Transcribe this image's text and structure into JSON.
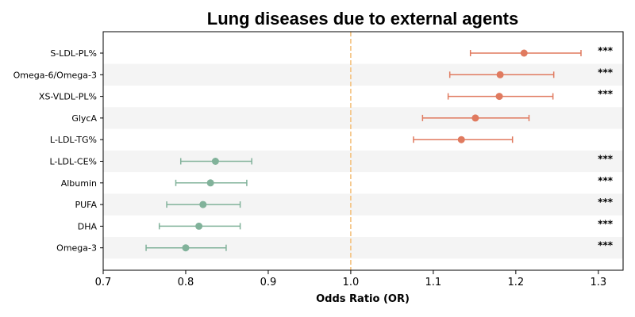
{
  "chart_data": {
    "type": "forest",
    "title": "Lung diseases due to external agents",
    "xlabel": "Odds Ratio (OR)",
    "xlim": [
      0.7,
      1.33
    ],
    "xticks": [
      "0.7",
      "0.8",
      "0.9",
      "1.0",
      "1.1",
      "1.2",
      "1.3"
    ],
    "reference_line": 1.0,
    "colors": {
      "positive": "#e07a5f",
      "negative": "#81b29a",
      "reference": "#f4c27f",
      "band": "#f4f4f4"
    },
    "rows": [
      {
        "label": "S-LDL-PL%",
        "or": 1.21,
        "lo": 1.145,
        "hi": 1.279,
        "sig": "***"
      },
      {
        "label": "Omega-6/Omega-3",
        "or": 1.181,
        "lo": 1.12,
        "hi": 1.246,
        "sig": "***"
      },
      {
        "label": "XS-VLDL-PL%",
        "or": 1.18,
        "lo": 1.118,
        "hi": 1.245,
        "sig": "***"
      },
      {
        "label": "GlycA",
        "or": 1.151,
        "lo": 1.087,
        "hi": 1.216,
        "sig": ""
      },
      {
        "label": "L-LDL-TG%",
        "or": 1.134,
        "lo": 1.076,
        "hi": 1.196,
        "sig": ""
      },
      {
        "label": "L-LDL-CE%",
        "or": 0.836,
        "lo": 0.794,
        "hi": 0.88,
        "sig": "***"
      },
      {
        "label": "Albumin",
        "or": 0.83,
        "lo": 0.788,
        "hi": 0.874,
        "sig": "***"
      },
      {
        "label": "PUFA",
        "or": 0.821,
        "lo": 0.777,
        "hi": 0.866,
        "sig": "***"
      },
      {
        "label": "DHA",
        "or": 0.816,
        "lo": 0.768,
        "hi": 0.866,
        "sig": "***"
      },
      {
        "label": "Omega-3",
        "or": 0.8,
        "lo": 0.752,
        "hi": 0.849,
        "sig": "***"
      }
    ]
  }
}
